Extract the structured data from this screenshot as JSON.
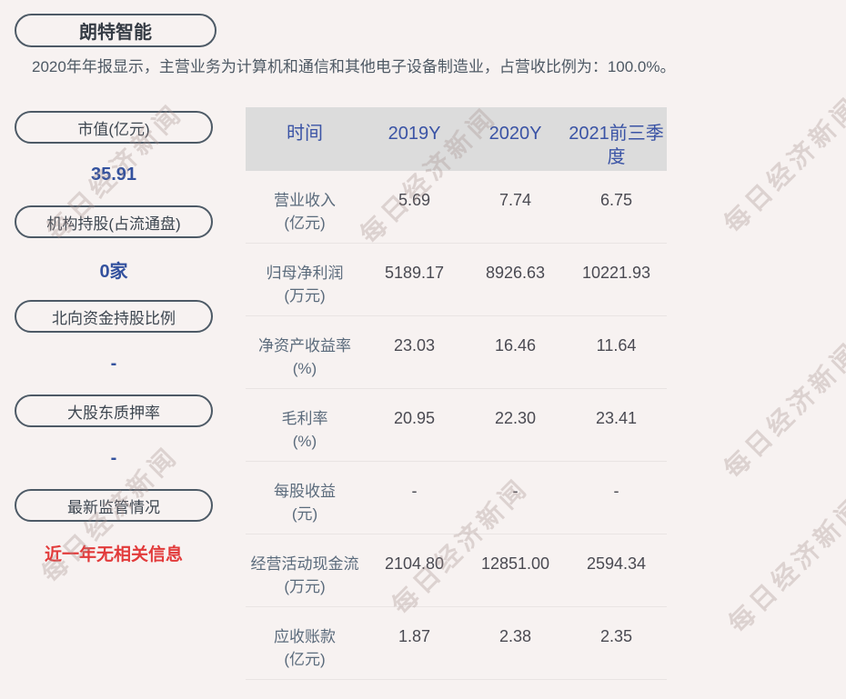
{
  "company": {
    "name": "朗特智能",
    "description": "2020年年报显示，主营业务为计算机和通信和其他电子设备制造业，占营收比例为：100.0%。"
  },
  "sidebar": {
    "items": [
      {
        "label": "市值(亿元)",
        "value": "35.91",
        "status": "normal"
      },
      {
        "label": "机构持股(占流通盘)",
        "value": "0家",
        "status": "normal"
      },
      {
        "label": "北向资金持股比例",
        "value": "-",
        "status": "normal"
      },
      {
        "label": "大股东质押率",
        "value": "-",
        "status": "normal"
      },
      {
        "label": "最新监管情况",
        "value": "近一年无相关信息",
        "status": "alert"
      }
    ]
  },
  "chart_data": {
    "type": "table",
    "title": "朗特智能财务数据",
    "columns": [
      "时间",
      "2019Y",
      "2020Y",
      "2021前三季度"
    ],
    "rows": [
      {
        "label": "营业收入",
        "unit": "(亿元)",
        "values": [
          "5.69",
          "7.74",
          "6.75"
        ]
      },
      {
        "label": "归母净利润",
        "unit": "(万元)",
        "values": [
          "5189.17",
          "8926.63",
          "10221.93"
        ]
      },
      {
        "label": "净资产收益率",
        "unit": "(%)",
        "values": [
          "23.03",
          "16.46",
          "11.64"
        ]
      },
      {
        "label": "毛利率",
        "unit": "(%)",
        "values": [
          "20.95",
          "22.30",
          "23.41"
        ]
      },
      {
        "label": "每股收益",
        "unit": "(元)",
        "values": [
          "-",
          "-",
          "-"
        ]
      },
      {
        "label": "经营活动现金流",
        "unit": "(万元)",
        "values": [
          "2104.80",
          "12851.00",
          "2594.34"
        ]
      },
      {
        "label": "应收账款",
        "unit": "(亿元)",
        "values": [
          "1.87",
          "2.38",
          "2.35"
        ]
      }
    ]
  },
  "watermark": {
    "text": "每日经济新闻"
  },
  "colors": {
    "background": "#f7f2f1",
    "header_bg": "#dcdcdc",
    "header_text": "#3a53a5",
    "accent_blue": "#33519e",
    "alert_red": "#e23b3b",
    "pill_border": "#4d5a66"
  }
}
